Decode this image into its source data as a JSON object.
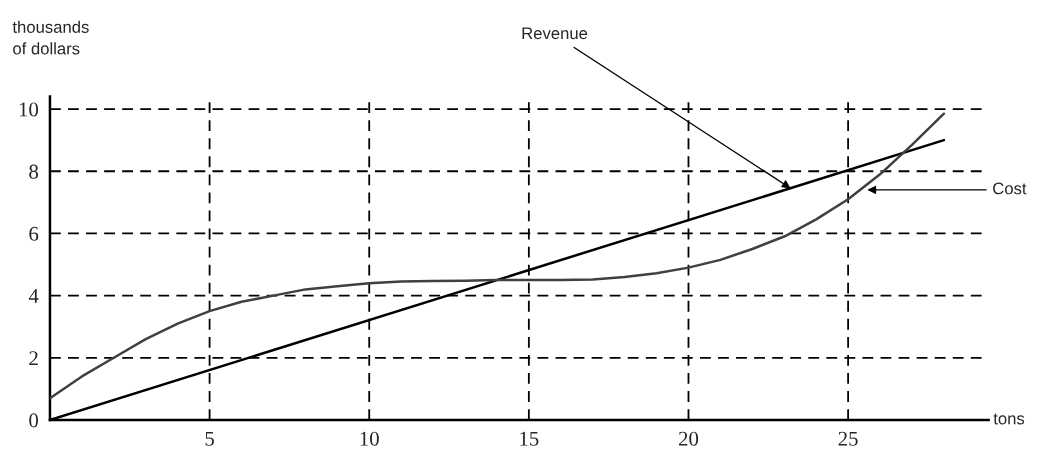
{
  "chart_data": {
    "type": "line",
    "xlabel": "tons",
    "ylabel": "thousands\nof dollars",
    "xlim": [
      0,
      29.4
    ],
    "ylim": [
      0,
      10.4
    ],
    "xticks": [
      5,
      10,
      15,
      20,
      25
    ],
    "yticks": [
      0,
      2,
      4,
      6,
      8,
      10
    ],
    "grid": true,
    "marker": "none",
    "line_style": "solid",
    "series": [
      {
        "x": [
          0,
          28
        ],
        "values": [
          0,
          9.0
        ],
        "color": "#000000"
      },
      {
        "x": [
          0,
          1,
          2,
          3,
          4,
          5,
          6,
          7,
          8,
          9,
          10,
          11,
          12,
          13,
          14,
          15,
          16,
          17,
          18,
          19,
          20,
          21,
          22,
          23,
          24,
          25,
          26,
          27,
          28
        ],
        "values": [
          0.7,
          1.4,
          2.0,
          2.6,
          3.1,
          3.5,
          3.8,
          4.0,
          4.2,
          4.3,
          4.4,
          4.45,
          4.47,
          4.48,
          4.5,
          4.5,
          4.5,
          4.52,
          4.6,
          4.72,
          4.9,
          5.15,
          5.5,
          5.9,
          6.45,
          7.1,
          7.9,
          8.85,
          9.85
        ],
        "color": "#404040"
      }
    ],
    "annotations": [
      {
        "text": "Revenue",
        "x": 23.2,
        "y": 7.45
      },
      {
        "text": "Cost",
        "x": 25.6,
        "y": 7.4
      }
    ]
  }
}
